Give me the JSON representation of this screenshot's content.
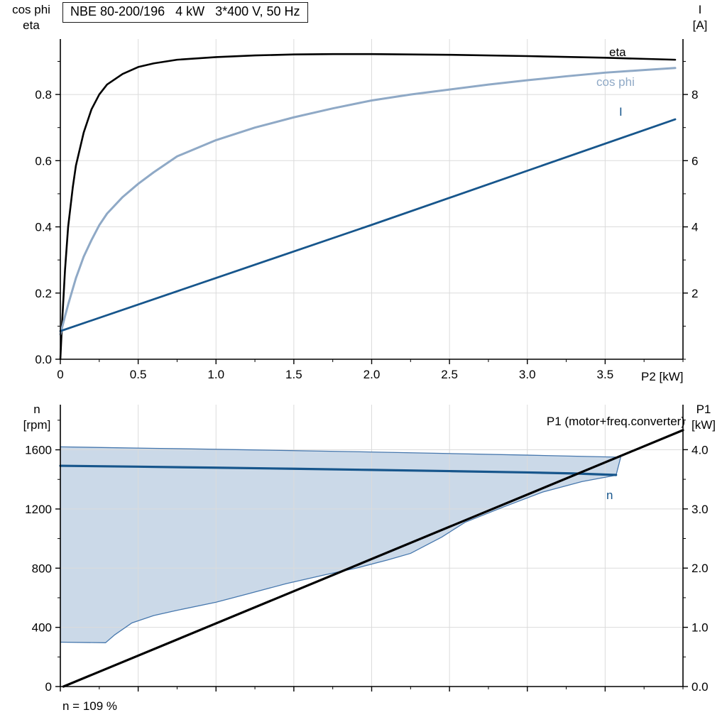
{
  "colors": {
    "eta": "#000000",
    "cos_phi": "#8FA9C6",
    "current": "#17568C",
    "n_line": "#17568C",
    "p1": "#000000",
    "band_fill": "#CBD9E8",
    "band_stroke": "#4677AD",
    "grid": "#DBDBDB",
    "axis": "#000000"
  },
  "chart_data": [
    {
      "type": "line",
      "title": "NBE 80-200/196   4 kW   3*400 V, 50 Hz",
      "xlabel": "P2 [kW]",
      "ylabel_left": "cos phi / eta",
      "ylabel_left_lines": [
        "cos phi",
        "eta"
      ],
      "ylabel_right": "I [A]",
      "ylabel_right_lines": [
        "I",
        "[A]"
      ],
      "xlim": [
        0,
        4.0
      ],
      "ylim_left": [
        0,
        0.9675
      ],
      "ylim_right": [
        0,
        9.675
      ],
      "grid": true,
      "legend": "inline labels at right of curves",
      "x_ticks": {
        "vals": [
          0,
          0.5,
          1.0,
          1.5,
          2.0,
          2.5,
          3.0,
          3.5
        ],
        "labels": [
          "0",
          "0.5",
          "1.0",
          "1.5",
          "2.0",
          "2.5",
          "3.0",
          "3.5"
        ]
      },
      "y_ticks_left": {
        "vals": [
          0.0,
          0.2,
          0.4,
          0.6,
          0.8
        ],
        "labels": [
          "0.0",
          "0.2",
          "0.4",
          "0.6",
          "0.8"
        ]
      },
      "y_ticks_right": {
        "vals": [
          2,
          4,
          6,
          8
        ],
        "labels": [
          "2",
          "4",
          "6",
          "8"
        ]
      },
      "x_minor": 0.25,
      "yl_minor": 0.1,
      "yr_minor": 1,
      "series": [
        {
          "id": "eta",
          "name": "eta",
          "axis": "left",
          "color_key": "eta",
          "width": 2.6,
          "x": [
            0,
            0.01,
            0.03,
            0.05,
            0.08,
            0.1,
            0.15,
            0.2,
            0.25,
            0.3,
            0.4,
            0.5,
            0.6,
            0.75,
            1.0,
            1.25,
            1.5,
            1.75,
            2.0,
            2.5,
            3.0,
            3.5,
            3.95
          ],
          "y": [
            0,
            0.1,
            0.27,
            0.4,
            0.52,
            0.585,
            0.685,
            0.755,
            0.8,
            0.83,
            0.862,
            0.883,
            0.894,
            0.905,
            0.913,
            0.918,
            0.921,
            0.922,
            0.922,
            0.92,
            0.916,
            0.911,
            0.905
          ]
        },
        {
          "id": "cos-phi",
          "name": "cos phi",
          "axis": "left",
          "color_key": "cos_phi",
          "width": 3,
          "x": [
            0,
            0.03,
            0.05,
            0.1,
            0.15,
            0.2,
            0.25,
            0.3,
            0.4,
            0.5,
            0.6,
            0.75,
            1.0,
            1.25,
            1.5,
            1.75,
            2.0,
            2.25,
            2.5,
            2.75,
            3.0,
            3.25,
            3.5,
            3.75,
            3.95
          ],
          "y": [
            0.075,
            0.13,
            0.165,
            0.245,
            0.31,
            0.36,
            0.405,
            0.44,
            0.49,
            0.53,
            0.565,
            0.613,
            0.662,
            0.7,
            0.731,
            0.758,
            0.782,
            0.8,
            0.815,
            0.83,
            0.843,
            0.855,
            0.866,
            0.874,
            0.88
          ]
        },
        {
          "id": "current",
          "name": "I",
          "axis": "right",
          "color_key": "current",
          "width": 2.8,
          "x": [
            0,
            2.0,
            3.95
          ],
          "y": [
            0.85,
            4.06,
            7.25
          ]
        }
      ]
    },
    {
      "type": "line",
      "title": "",
      "xlabel": "",
      "ylabel_left": "n [rpm]",
      "ylabel_left_lines": [
        "n",
        "[rpm]"
      ],
      "ylabel_right": "P1 [kW]",
      "ylabel_right_lines": [
        "P1",
        "[kW]"
      ],
      "annotation": "n = 109 %",
      "xlim": [
        0,
        4.0
      ],
      "ylim_left": [
        0,
        1905
      ],
      "ylim_right": [
        0,
        4.76
      ],
      "grid": true,
      "x_ticks": {
        "vals": [
          0,
          0.5,
          1.0,
          1.5,
          2.0,
          2.5,
          3.0,
          3.5
        ],
        "labels": []
      },
      "y_ticks_left": {
        "vals": [
          0,
          400,
          800,
          1200,
          1600
        ],
        "labels": [
          "0",
          "400",
          "800",
          "1200",
          "1600"
        ]
      },
      "y_ticks_right": {
        "vals": [
          0,
          1,
          2,
          3,
          4
        ],
        "labels": [
          "0.0",
          "1.0",
          "2.0",
          "3.0",
          "4.0"
        ]
      },
      "x_minor": 0.25,
      "yl_minor": 200,
      "yr_minor": 0.5,
      "band": {
        "name": "speed-control-range",
        "upper_x": [
          0,
          0.6,
          1.2,
          1.8,
          2.4,
          3.0,
          3.6
        ],
        "upper_y": [
          1620,
          1610,
          1600,
          1589,
          1577,
          1564,
          1550
        ],
        "lower_x": [
          0,
          0.29,
          0.35,
          0.46,
          0.6,
          0.75,
          1.0,
          1.2,
          1.45,
          1.7,
          1.9,
          2.1,
          2.25,
          2.45,
          2.6,
          2.85,
          3.1,
          3.35,
          3.57
        ],
        "lower_y": [
          300,
          296,
          350,
          430,
          480,
          515,
          570,
          625,
          695,
          755,
          800,
          855,
          900,
          1010,
          1110,
          1215,
          1315,
          1385,
          1428
        ]
      },
      "series": [
        {
          "id": "n",
          "name": "n",
          "axis": "left",
          "color_key": "n_line",
          "width": 3.2,
          "x": [
            0,
            0.5,
            1.0,
            1.5,
            2.0,
            2.5,
            3.0,
            3.3,
            3.57
          ],
          "y": [
            1492,
            1486,
            1479,
            1472,
            1464,
            1456,
            1447,
            1440,
            1430
          ]
        },
        {
          "id": "p1",
          "name": "P1",
          "label": "P1 (motor+freq.converter)",
          "axis": "right",
          "color_key": "p1",
          "width": 3.2,
          "x": [
            0.02,
            4.0
          ],
          "y": [
            0,
            4.33
          ]
        }
      ]
    }
  ]
}
